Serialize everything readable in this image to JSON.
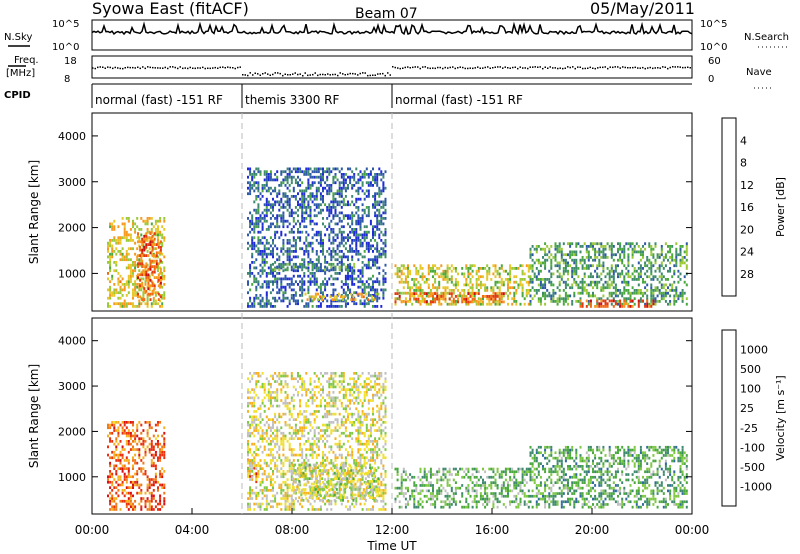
{
  "header": {
    "station": "Syowa East (fitACF)",
    "beam": "Beam 07",
    "date": "05/May/2011"
  },
  "top_strip": {
    "nsky_label": "N.Sky",
    "nsearch_label": "N.Search",
    "left_ticks": [
      "10^5",
      "10^0"
    ],
    "right_ticks": [
      "10^5",
      "10^0"
    ],
    "freq_label_1": "Freq.",
    "freq_label_2": "[MHz]",
    "freq_ticks": [
      "18",
      "8"
    ],
    "nave_label": "Nave",
    "nave_ticks": [
      "60",
      "0"
    ],
    "cpid_label": "CPID",
    "modes": [
      {
        "label": "normal (fast) -151 RF",
        "start": 0,
        "end": 6
      },
      {
        "label": "themis 3300 RF",
        "start": 6,
        "end": 12
      },
      {
        "label": "normal (fast) -151 RF",
        "start": 12,
        "end": 24
      }
    ]
  },
  "chart_data": [
    {
      "type": "heatmap",
      "panel": "power",
      "ylabel": "Slant Range [km]",
      "yticks": [
        "1000",
        "2000",
        "3000",
        "4000"
      ],
      "ylim": [
        180,
        4500
      ],
      "xlim": [
        0,
        24
      ],
      "colorbar": {
        "label": "Power [dB]",
        "ticks": [
          "4",
          "8",
          "12",
          "16",
          "20",
          "24",
          "28"
        ],
        "colors": [
          "#1f2bd6",
          "#2f5aa8",
          "#3f8a6e",
          "#4aa83e",
          "#9bc93a",
          "#e7c82a",
          "#f59a1f",
          "#f06a16",
          "#e23a12",
          "#c81010"
        ]
      },
      "regions": [
        {
          "x0": 0.6,
          "x1": 2.9,
          "y0": 250,
          "y1": 2200,
          "level": 0.55
        },
        {
          "x0": 1.8,
          "x1": 2.8,
          "y0": 400,
          "y1": 1900,
          "level": 0.8
        },
        {
          "x0": 6.2,
          "x1": 11.8,
          "y0": 250,
          "y1": 3300,
          "level": 0.12
        },
        {
          "x0": 7.2,
          "x1": 10.5,
          "y0": 1050,
          "y1": 1250,
          "level": 0.25
        },
        {
          "x0": 8.5,
          "x1": 11.5,
          "y0": 400,
          "y1": 550,
          "level": 0.6
        },
        {
          "x0": 12.1,
          "x1": 17.5,
          "y0": 300,
          "y1": 1200,
          "level": 0.5
        },
        {
          "x0": 12.1,
          "x1": 16.5,
          "y0": 350,
          "y1": 600,
          "level": 0.8
        },
        {
          "x0": 17.5,
          "x1": 23.8,
          "y0": 300,
          "y1": 1700,
          "level": 0.3
        },
        {
          "x0": 19.5,
          "x1": 22.5,
          "y0": 250,
          "y1": 400,
          "level": 0.85
        }
      ]
    },
    {
      "type": "heatmap",
      "panel": "velocity",
      "ylabel": "Slant Range [km]",
      "yticks": [
        "1000",
        "2000",
        "3000",
        "4000"
      ],
      "ylim": [
        180,
        4500
      ],
      "xlim": [
        0,
        24
      ],
      "xlabel": "Time UT",
      "xticks": [
        "00:00",
        "04:00",
        "08:00",
        "12:00",
        "16:00",
        "20:00",
        "00:00"
      ],
      "colorbar": {
        "label": "Velocity [m s⁻¹]",
        "ticks": [
          "1000",
          "500",
          "100",
          "25",
          "-25",
          "-100",
          "-500",
          "-1000"
        ],
        "colors": [
          "#1f2bd6",
          "#2f6aa0",
          "#3f8a6e",
          "#4aa83e",
          "#7ec843",
          "#c0c0c0",
          "#f0e030",
          "#f5b020",
          "#f07818",
          "#e83010",
          "#d81010"
        ]
      },
      "regions": [
        {
          "x0": 0.6,
          "x1": 2.9,
          "y0": 250,
          "y1": 2200,
          "level": 0.82
        },
        {
          "x0": 6.2,
          "x1": 6.6,
          "y0": 800,
          "y1": 1500,
          "level": 0.85
        },
        {
          "x0": 6.2,
          "x1": 11.8,
          "y0": 250,
          "y1": 3300,
          "level": 0.55
        },
        {
          "x0": 8.0,
          "x1": 11.5,
          "y0": 450,
          "y1": 1300,
          "level": 0.5
        },
        {
          "x0": 12.1,
          "x1": 17.5,
          "y0": 300,
          "y1": 1200,
          "level": 0.35
        },
        {
          "x0": 17.5,
          "x1": 23.8,
          "y0": 300,
          "y1": 1700,
          "level": 0.3
        }
      ]
    }
  ]
}
